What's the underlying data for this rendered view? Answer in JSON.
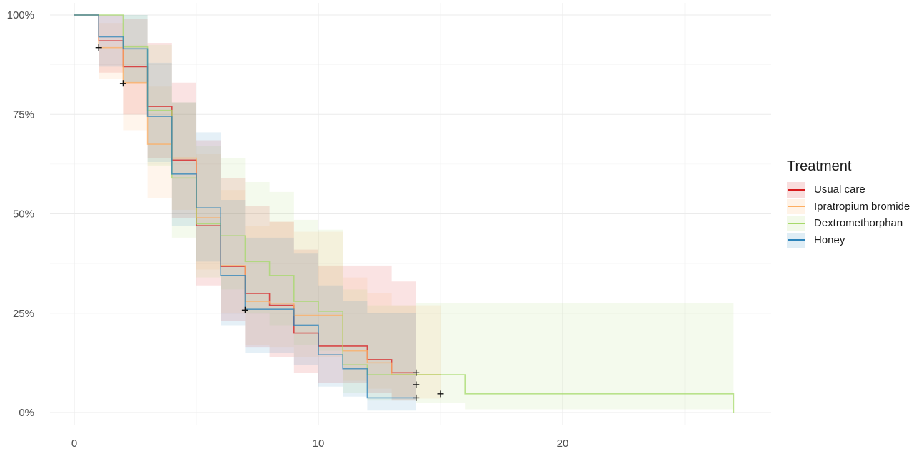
{
  "chart_data": {
    "type": "line",
    "title": "",
    "xlabel": "",
    "ylabel": "",
    "xlim": [
      0,
      27
    ],
    "ylim": [
      0,
      1
    ],
    "x_ticks": [
      0,
      10,
      20
    ],
    "x_tick_labels": [
      "0",
      "10",
      "20"
    ],
    "y_ticks": [
      0,
      0.25,
      0.5,
      0.75,
      1.0
    ],
    "y_tick_labels": [
      "0%",
      "25%",
      "50%",
      "75%",
      "100%"
    ],
    "grid": true,
    "legend": {
      "title": "Treatment",
      "placement": "right"
    },
    "series": [
      {
        "name": "Usual care",
        "color": "#d7191c",
        "steps": [
          [
            0,
            1.0
          ],
          [
            1,
            0.935
          ],
          [
            2,
            0.87
          ],
          [
            3,
            0.77
          ],
          [
            4,
            0.635
          ],
          [
            5,
            0.47
          ],
          [
            6,
            0.368
          ],
          [
            7,
            0.3
          ],
          [
            8,
            0.27
          ],
          [
            9,
            0.2
          ],
          [
            10,
            0.167
          ],
          [
            12,
            0.133
          ],
          [
            13,
            0.1
          ],
          [
            14,
            0.1
          ]
        ],
        "lower": [
          [
            0,
            1.0
          ],
          [
            1,
            0.855
          ],
          [
            2,
            0.75
          ],
          [
            3,
            0.64
          ],
          [
            4,
            0.49
          ],
          [
            5,
            0.32
          ],
          [
            6,
            0.23
          ],
          [
            7,
            0.165
          ],
          [
            8,
            0.14
          ],
          [
            9,
            0.1
          ],
          [
            10,
            0.075
          ],
          [
            12,
            0.05
          ],
          [
            13,
            0.03
          ],
          [
            14,
            0.03
          ]
        ],
        "upper": [
          [
            0,
            1.0
          ],
          [
            1,
            1.0
          ],
          [
            2,
            0.99
          ],
          [
            3,
            0.93
          ],
          [
            4,
            0.83
          ],
          [
            5,
            0.685
          ],
          [
            6,
            0.59
          ],
          [
            7,
            0.52
          ],
          [
            8,
            0.48
          ],
          [
            9,
            0.41
          ],
          [
            10,
            0.37
          ],
          [
            12,
            0.37
          ],
          [
            13,
            0.33
          ],
          [
            14,
            0.33
          ]
        ],
        "censor": [
          [
            1,
            0.918
          ],
          [
            14,
            0.1
          ],
          [
            14,
            0.07
          ]
        ]
      },
      {
        "name": "Ipratropium bromide",
        "color": "#fdae61",
        "steps": [
          [
            0,
            1.0
          ],
          [
            1,
            0.918
          ],
          [
            2,
            0.83
          ],
          [
            3,
            0.675
          ],
          [
            4,
            0.64
          ],
          [
            5,
            0.49
          ],
          [
            6,
            0.37
          ],
          [
            7,
            0.28
          ],
          [
            8,
            0.275
          ],
          [
            9,
            0.245
          ],
          [
            11,
            0.155
          ],
          [
            12,
            0.125
          ],
          [
            13,
            0.095
          ],
          [
            14,
            0.095
          ],
          [
            15,
            0.095
          ]
        ],
        "lower": [
          [
            0,
            1.0
          ],
          [
            1,
            0.84
          ],
          [
            2,
            0.71
          ],
          [
            3,
            0.54
          ],
          [
            4,
            0.51
          ],
          [
            5,
            0.36
          ],
          [
            6,
            0.25
          ],
          [
            7,
            0.17
          ],
          [
            8,
            0.165
          ],
          [
            9,
            0.14
          ],
          [
            11,
            0.08
          ],
          [
            12,
            0.06
          ],
          [
            13,
            0.04
          ],
          [
            14,
            0.035
          ],
          [
            15,
            0.035
          ]
        ],
        "upper": [
          [
            0,
            1.0
          ],
          [
            1,
            0.98
          ],
          [
            2,
            0.925
          ],
          [
            3,
            0.82
          ],
          [
            4,
            0.78
          ],
          [
            5,
            0.65
          ],
          [
            6,
            0.56
          ],
          [
            7,
            0.47
          ],
          [
            8,
            0.48
          ],
          [
            9,
            0.455
          ],
          [
            11,
            0.34
          ],
          [
            12,
            0.3
          ],
          [
            13,
            0.27
          ],
          [
            14,
            0.27
          ],
          [
            15,
            0.27
          ]
        ],
        "censor": [
          [
            2,
            0.828
          ],
          [
            15,
            0.047
          ]
        ]
      },
      {
        "name": "Dextromethorphan",
        "color": "#a6d96a",
        "steps": [
          [
            0,
            1.0
          ],
          [
            2,
            0.92
          ],
          [
            3,
            0.76
          ],
          [
            4,
            0.59
          ],
          [
            5,
            0.475
          ],
          [
            6,
            0.445
          ],
          [
            7,
            0.38
          ],
          [
            8,
            0.345
          ],
          [
            9,
            0.28
          ],
          [
            10,
            0.255
          ],
          [
            11,
            0.12
          ],
          [
            12,
            0.095
          ],
          [
            14,
            0.095
          ],
          [
            16,
            0.047
          ],
          [
            27,
            0.0
          ]
        ],
        "lower": [
          [
            0,
            1.0
          ],
          [
            2,
            0.83
          ],
          [
            3,
            0.62
          ],
          [
            4,
            0.44
          ],
          [
            5,
            0.34
          ],
          [
            6,
            0.31
          ],
          [
            7,
            0.25
          ],
          [
            8,
            0.22
          ],
          [
            9,
            0.17
          ],
          [
            10,
            0.155
          ],
          [
            11,
            0.05
          ],
          [
            12,
            0.03
          ],
          [
            14,
            0.025
          ],
          [
            16,
            0.008
          ],
          [
            27,
            0.008
          ]
        ],
        "upper": [
          [
            0,
            1.0
          ],
          [
            2,
            1.0
          ],
          [
            3,
            0.925
          ],
          [
            4,
            0.78
          ],
          [
            5,
            0.67
          ],
          [
            6,
            0.64
          ],
          [
            7,
            0.58
          ],
          [
            8,
            0.555
          ],
          [
            9,
            0.485
          ],
          [
            10,
            0.46
          ],
          [
            11,
            0.31
          ],
          [
            12,
            0.27
          ],
          [
            14,
            0.275
          ],
          [
            16,
            0.275
          ],
          [
            27,
            0.275
          ]
        ],
        "censor": []
      },
      {
        "name": "Honey",
        "color": "#2b83ba",
        "steps": [
          [
            0,
            1.0
          ],
          [
            1,
            0.945
          ],
          [
            2,
            0.915
          ],
          [
            3,
            0.745
          ],
          [
            4,
            0.6
          ],
          [
            5,
            0.515
          ],
          [
            6,
            0.345
          ],
          [
            7,
            0.26
          ],
          [
            8,
            0.26
          ],
          [
            9,
            0.22
          ],
          [
            10,
            0.145
          ],
          [
            11,
            0.11
          ],
          [
            12,
            0.037
          ],
          [
            14,
            0.037
          ]
        ],
        "lower": [
          [
            0,
            1.0
          ],
          [
            1,
            0.87
          ],
          [
            2,
            0.83
          ],
          [
            3,
            0.63
          ],
          [
            4,
            0.47
          ],
          [
            5,
            0.38
          ],
          [
            6,
            0.22
          ],
          [
            7,
            0.15
          ],
          [
            8,
            0.15
          ],
          [
            9,
            0.12
          ],
          [
            10,
            0.065
          ],
          [
            11,
            0.04
          ],
          [
            12,
            0.005
          ],
          [
            14,
            0.005
          ]
        ],
        "upper": [
          [
            0,
            1.0
          ],
          [
            1,
            1.0
          ],
          [
            2,
            1.0
          ],
          [
            3,
            0.88
          ],
          [
            4,
            0.78
          ],
          [
            5,
            0.705
          ],
          [
            6,
            0.535
          ],
          [
            7,
            0.44
          ],
          [
            8,
            0.44
          ],
          [
            9,
            0.4
          ],
          [
            10,
            0.32
          ],
          [
            11,
            0.28
          ],
          [
            12,
            0.25
          ],
          [
            14,
            0.25
          ]
        ],
        "censor": [
          [
            7,
            0.258
          ],
          [
            14,
            0.037
          ]
        ]
      }
    ]
  }
}
